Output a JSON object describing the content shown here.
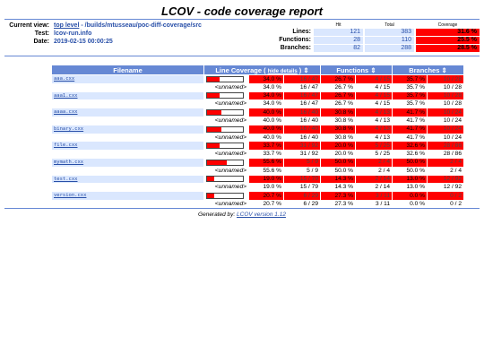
{
  "title": "LCOV - code coverage report",
  "header": {
    "current_view_label": "Current view:",
    "current_view_link": "top level",
    "current_view_path": " - /builds/mtusseau/poc-diff-coverage/src",
    "test_label": "Test:",
    "test_value": "lcov-run.info",
    "date_label": "Date:",
    "date_value": "2019-02-15 00:00:25"
  },
  "summary": {
    "col_hit": "Hit",
    "col_total": "Total",
    "col_coverage": "Coverage",
    "rows": [
      {
        "label": "Lines:",
        "hit": "121",
        "total": "383",
        "coverage": "31.6 %"
      },
      {
        "label": "Functions:",
        "hit": "28",
        "total": "110",
        "coverage": "25.5 %"
      },
      {
        "label": "Branches:",
        "hit": "82",
        "total": "288",
        "coverage": "28.5 %"
      }
    ]
  },
  "table": {
    "col_filename": "Filename",
    "col_line_coverage": "Line Coverage",
    "hide_details": "hide details",
    "col_functions": "Functions",
    "col_branches": "Branches",
    "rows": [
      {
        "file": "aaa.cxx",
        "bar": 0.34,
        "l_pct": "34.0 %",
        "l_num": "16 / 47",
        "f_pct": "26.7 %",
        "f_num": "4 / 15",
        "b_pct": "35.7 %",
        "b_num": "10 / 28",
        "un": {
          "label": "<unnamed>",
          "l_pct": "34.0 %",
          "l_num": "16 / 47",
          "f_pct": "26.7 %",
          "f_num": "4 / 15",
          "b_pct": "35.7 %",
          "b_num": "10 / 28"
        }
      },
      {
        "file": "aaa1.cxx",
        "bar": 0.34,
        "l_pct": "34.0 %",
        "l_num": "16 / 47",
        "f_pct": "26.7 %",
        "f_num": "4 / 15",
        "b_pct": "35.7 %",
        "b_num": "10 / 28",
        "un": {
          "label": "<unnamed>",
          "l_pct": "34.0 %",
          "l_num": "16 / 47",
          "f_pct": "26.7 %",
          "f_num": "4 / 15",
          "b_pct": "35.7 %",
          "b_num": "10 / 28"
        }
      },
      {
        "file": "aaaa.cxx",
        "bar": 0.4,
        "l_pct": "40.0 %",
        "l_num": "16 / 40",
        "f_pct": "30.8 %",
        "f_num": "4 / 13",
        "b_pct": "41.7 %",
        "b_num": "10 / 24",
        "un": {
          "label": "<unnamed>",
          "l_pct": "40.0 %",
          "l_num": "16 / 40",
          "f_pct": "30.8 %",
          "f_num": "4 / 13",
          "b_pct": "41.7 %",
          "b_num": "10 / 24"
        }
      },
      {
        "file": "binary.cxx",
        "bar": 0.4,
        "l_pct": "40.0 %",
        "l_num": "16 / 40",
        "f_pct": "30.8 %",
        "f_num": "4 / 13",
        "b_pct": "41.7 %",
        "b_num": "10 / 24",
        "un": {
          "label": "<unnamed>",
          "l_pct": "40.0 %",
          "l_num": "16 / 40",
          "f_pct": "30.8 %",
          "f_num": "4 / 13",
          "b_pct": "41.7 %",
          "b_num": "10 / 24"
        }
      },
      {
        "file": "file.cxx",
        "bar": 0.337,
        "l_pct": "33.7 %",
        "l_num": "31 / 92",
        "f_pct": "20.0 %",
        "f_num": "5 / 25",
        "b_pct": "32.6 %",
        "b_num": "28 / 86",
        "un": {
          "label": "<unnamed>",
          "l_pct": "33.7 %",
          "l_num": "31 / 92",
          "f_pct": "20.0 %",
          "f_num": "5 / 25",
          "b_pct": "32.6 %",
          "b_num": "28 / 86"
        }
      },
      {
        "file": "mymath.cxx",
        "bar": 0.556,
        "l_pct": "55.6 %",
        "l_num": "5 / 9",
        "f_pct": "50.0 %",
        "f_num": "2 / 4",
        "b_pct": "50.0 %",
        "b_num": "2 / 4",
        "un": {
          "label": "<unnamed>",
          "l_pct": "55.6 %",
          "l_num": "5 / 9",
          "f_pct": "50.0 %",
          "f_num": "2 / 4",
          "b_pct": "50.0 %",
          "b_num": "2 / 4"
        }
      },
      {
        "file": "test.cxx",
        "bar": 0.19,
        "l_pct": "19.0 %",
        "l_num": "15 / 79",
        "f_pct": "14.3 %",
        "f_num": "2 / 14",
        "b_pct": "13.0 %",
        "b_num": "12 / 92",
        "un": {
          "label": "<unnamed>",
          "l_pct": "19.0 %",
          "l_num": "15 / 79",
          "f_pct": "14.3 %",
          "f_num": "2 / 14",
          "b_pct": "13.0 %",
          "b_num": "12 / 92"
        }
      },
      {
        "file": "version.cxx",
        "bar": 0.207,
        "l_pct": "20.7 %",
        "l_num": "6 / 29",
        "f_pct": "27.3 %",
        "f_num": "3 / 11",
        "b_pct": "0.0 %",
        "b_num": "0 / 2",
        "un": {
          "label": "<unnamed>",
          "l_pct": "20.7 %",
          "l_num": "6 / 29",
          "f_pct": "27.3 %",
          "f_num": "3 / 11",
          "b_pct": "0.0 %",
          "b_num": "0 / 2"
        }
      }
    ]
  },
  "footer": {
    "prefix": "Generated by: ",
    "link": "LCOV version 1.12"
  },
  "colors": {
    "accent": "#6688d4",
    "low_coverage": "#ff0000",
    "link": "#284fa8",
    "cell_bg": "#dae7fe"
  }
}
